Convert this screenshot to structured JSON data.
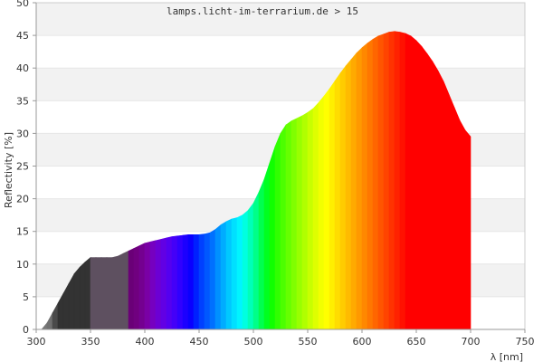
{
  "chart_data": {
    "type": "area",
    "title": "lamps.licht-im-terrarium.de > 15",
    "xlabel": "λ [nm]",
    "ylabel": "Reflectivity [%]",
    "xlim": [
      300,
      750
    ],
    "ylim": [
      0,
      50
    ],
    "x_ticks": [
      300,
      350,
      400,
      450,
      500,
      550,
      600,
      650,
      700,
      750
    ],
    "y_ticks": [
      0,
      5,
      10,
      15,
      20,
      25,
      30,
      35,
      40,
      45,
      50
    ],
    "grid": "horizontal-bands",
    "x": [
      300,
      305,
      310,
      315,
      320,
      325,
      330,
      335,
      340,
      345,
      350,
      355,
      360,
      365,
      370,
      375,
      380,
      385,
      390,
      395,
      400,
      405,
      410,
      415,
      420,
      425,
      430,
      435,
      440,
      445,
      450,
      455,
      460,
      465,
      470,
      475,
      480,
      485,
      490,
      495,
      500,
      505,
      510,
      515,
      520,
      525,
      530,
      535,
      540,
      545,
      550,
      555,
      560,
      565,
      570,
      575,
      580,
      585,
      590,
      595,
      600,
      605,
      610,
      615,
      620,
      625,
      630,
      635,
      640,
      645,
      650,
      655,
      660,
      665,
      670,
      675,
      680,
      685,
      690,
      695,
      700
    ],
    "values": [
      0,
      0,
      1,
      2.5,
      4,
      5.5,
      7,
      8.5,
      9.5,
      10.3,
      11,
      11,
      11,
      11,
      11,
      11.2,
      11.6,
      12,
      12.4,
      12.8,
      13.2,
      13.4,
      13.6,
      13.8,
      14,
      14.2,
      14.3,
      14.4,
      14.5,
      14.5,
      14.5,
      14.6,
      14.8,
      15.3,
      16,
      16.5,
      16.9,
      17.1,
      17.5,
      18.2,
      19.3,
      21,
      23,
      25.5,
      28,
      30,
      31.3,
      31.9,
      32.3,
      32.7,
      33.2,
      33.8,
      34.7,
      35.7,
      36.8,
      38,
      39.2,
      40.3,
      41.3,
      42.3,
      43.1,
      43.8,
      44.4,
      44.9,
      45.2,
      45.5,
      45.6,
      45.5,
      45.3,
      44.9,
      44.2,
      43.3,
      42.2,
      41,
      39.6,
      38,
      36,
      34,
      32,
      30.5,
      29.5
    ],
    "band_colors": [
      "#808080",
      "#787878",
      "#707070",
      "#4a4a4a",
      "#333333",
      "#333333",
      "#333333",
      "#333333",
      "#333333",
      "#333333",
      "#5e5060",
      "#5e5060",
      "#5e5060",
      "#5e5060",
      "#5e5060",
      "#5e5060",
      "#5e5060",
      "#6a0077",
      "#70007f",
      "#740090",
      "#7a00a5",
      "#7600c0",
      "#6c00d4",
      "#6200e4",
      "#5400f0",
      "#4400f8",
      "#3000ff",
      "#1c00ff",
      "#0a00ff",
      "#0020ff",
      "#0040ff",
      "#0058ff",
      "#0070ff",
      "#0090ff",
      "#00acff",
      "#00c8ff",
      "#00e0ff",
      "#00f4ff",
      "#00ffe0",
      "#00ffb8",
      "#00ff88",
      "#00ff50",
      "#00ff20",
      "#10ff00",
      "#30ff00",
      "#4cff00",
      "#66ff00",
      "#80ff00",
      "#99ff00",
      "#b0ff00",
      "#c8ff00",
      "#deff00",
      "#f2ff00",
      "#ffff00",
      "#ffef00",
      "#ffdd00",
      "#ffcc00",
      "#ffbb00",
      "#ffaa00",
      "#ff9900",
      "#ff8800",
      "#ff7700",
      "#ff6600",
      "#ff5500",
      "#ff4400",
      "#ff3300",
      "#ff2200",
      "#ff1100",
      "#ff0000",
      "#ff0000",
      "#ff0000",
      "#ff0000",
      "#ff0000",
      "#ff0000",
      "#ff0000",
      "#ff0000",
      "#ff0000",
      "#ff0000",
      "#ff0000",
      "#ff0000"
    ]
  }
}
